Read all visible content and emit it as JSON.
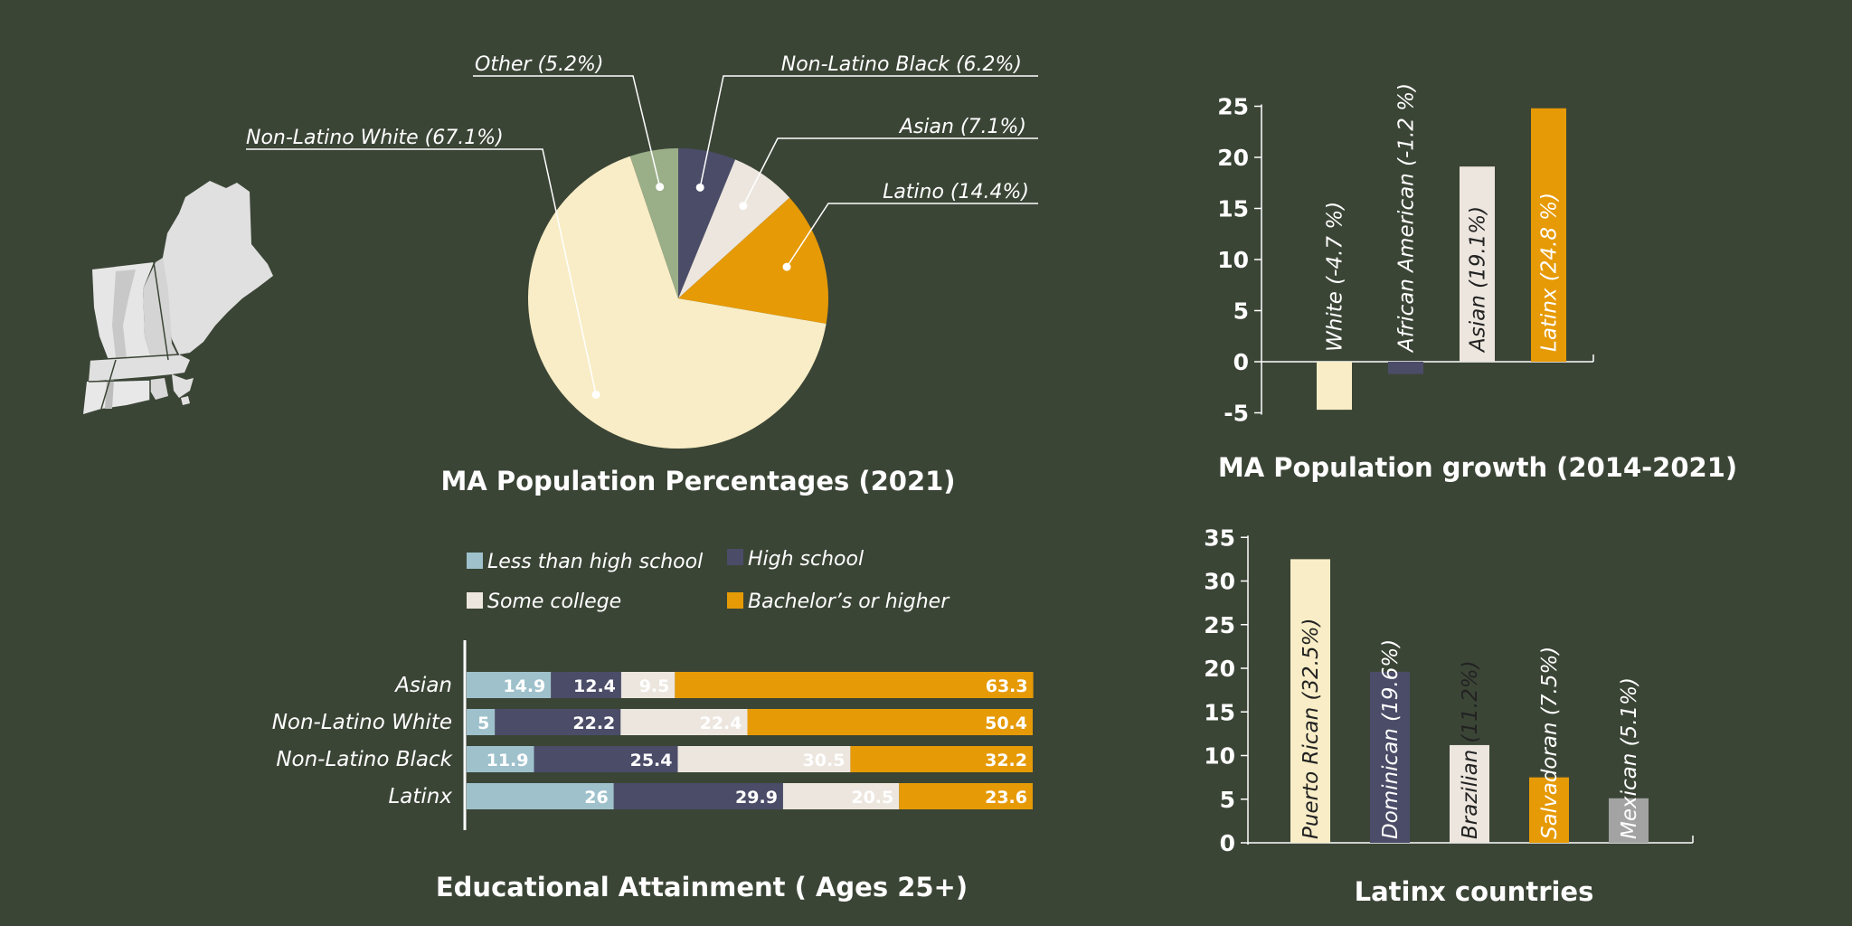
{
  "colors": {
    "background": "#3b4536",
    "cream": "#f8edc6",
    "navy": "#4b4c68",
    "light": "#ece6de",
    "orange": "#e69a06",
    "sage": "#9aae88",
    "lightblue": "#9ec1cc",
    "gray": "#a3a3a3",
    "map": "#e0e0e0"
  },
  "map": {
    "icon": "new-england-map-icon"
  },
  "chart_data": [
    {
      "type": "pie",
      "title": "MA Population Percentages (2021)",
      "slices": [
        {
          "name": "Non-Latino Black (6.2%)",
          "value": 6.2,
          "color": "#4b4c68"
        },
        {
          "name": "Asian (7.1%)",
          "value": 7.1,
          "color": "#ece6de"
        },
        {
          "name": "Latino (14.4%)",
          "value": 14.4,
          "color": "#e69a06"
        },
        {
          "name": "Non-Latino White (67.1%)",
          "value": 67.1,
          "color": "#f8edc6"
        },
        {
          "name": "Other (5.2%)",
          "value": 5.2,
          "color": "#9aae88"
        }
      ]
    },
    {
      "type": "bar",
      "title": "MA Population growth (2014-2021)",
      "categories": [
        "White (-4.7 %)",
        "African American (-1.2 %)",
        "Asian (19.1%)",
        "Latinx (24.8 %)"
      ],
      "values": [
        -4.7,
        -1.2,
        19.1,
        24.8
      ],
      "colors": [
        "#f8edc6",
        "#4b4c68",
        "#ece6de",
        "#e69a06"
      ],
      "label_colors": [
        "#ffffff",
        "#ffffff",
        "#222222",
        "#ffffff"
      ],
      "ylim": [
        -5,
        25
      ],
      "yticks": [
        -5,
        0,
        5,
        10,
        15,
        20,
        25
      ]
    },
    {
      "type": "bar",
      "stacked": true,
      "orientation": "horizontal",
      "title": "Educational Attainment ( Ages 25+)",
      "categories": [
        "Asian",
        "Non-Latino White",
        "Non-Latino Black",
        "Latinx"
      ],
      "series": [
        {
          "name": "Less than high school",
          "color": "#9ec1cc",
          "values": [
            14.9,
            5,
            11.9,
            26
          ]
        },
        {
          "name": "High school",
          "color": "#4b4c68",
          "values": [
            12.4,
            22.2,
            25.4,
            29.9
          ]
        },
        {
          "name": "Some college",
          "color": "#ece6de",
          "values": [
            9.5,
            22.4,
            30.5,
            20.5
          ]
        },
        {
          "name": "Bachelor’s or higher",
          "color": "#e69a06",
          "values": [
            63.3,
            50.4,
            32.2,
            23.6
          ]
        }
      ],
      "xlim": [
        0,
        100
      ]
    },
    {
      "type": "bar",
      "title": "Latinx countries",
      "categories": [
        "Puerto Rican (32.5%)",
        "Dominican (19.6%)",
        "Brazilian (11.2%)",
        "Salvadoran (7.5%)",
        "Mexican (5.1%)"
      ],
      "values": [
        32.5,
        19.6,
        11.2,
        7.5,
        5.1
      ],
      "colors": [
        "#f8edc6",
        "#4b4c68",
        "#ece6de",
        "#e69a06",
        "#a3a3a3"
      ],
      "label_colors": [
        "#222222",
        "#ffffff",
        "#222222",
        "#ffffff",
        "#ffffff"
      ],
      "ylim": [
        0,
        35
      ],
      "yticks": [
        0,
        5,
        10,
        15,
        20,
        25,
        30,
        35
      ]
    }
  ]
}
